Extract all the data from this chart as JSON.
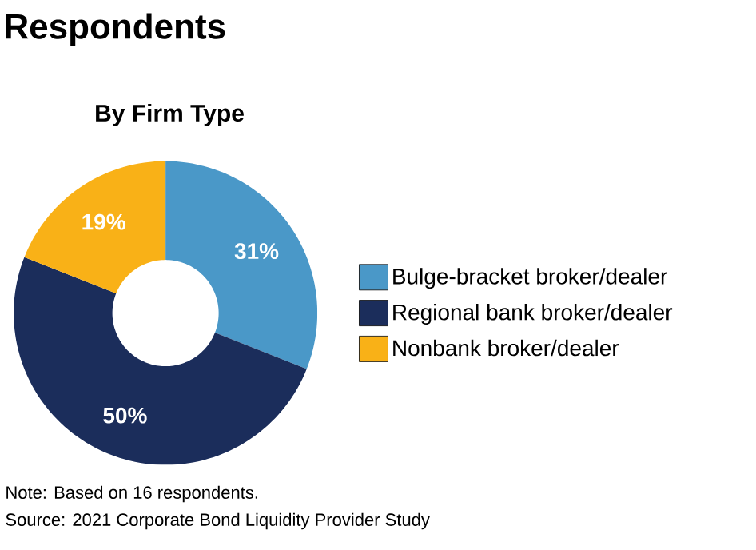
{
  "chart_data": {
    "type": "donut",
    "title": "Respondents",
    "subtitle": "By Firm Type",
    "categories": [
      "Bulge-bracket broker/dealer",
      "Regional bank broker/dealer",
      "Nonbank broker/dealer"
    ],
    "values": [
      31,
      50,
      19
    ],
    "colors": [
      "#4a98c8",
      "#1b2d5b",
      "#f9b117"
    ],
    "value_labels": [
      "31%",
      "50%",
      "19%"
    ],
    "legend": "right",
    "annotations": [
      "Note: Based on 16 respondents.",
      "Source: 2021 Corporate Bond Liquidity Provider Study"
    ]
  }
}
